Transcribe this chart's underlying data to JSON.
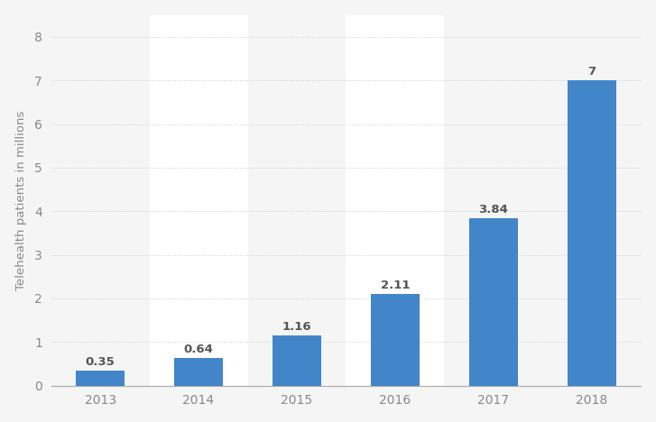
{
  "categories": [
    "2013",
    "2014",
    "2015",
    "2016",
    "2017",
    "2018"
  ],
  "values": [
    0.35,
    0.64,
    1.16,
    2.11,
    3.84,
    7
  ],
  "labels": [
    "0.35",
    "0.64",
    "1.16",
    "2.11",
    "3.84",
    "7"
  ],
  "bar_color": "#4285c8",
  "background_color": "#f5f5f5",
  "col_highlight_color": "#ffffff",
  "col_highlight_indices": [
    1,
    3
  ],
  "ylabel": "Telehealth patients in millions",
  "ylim": [
    0,
    8.5
  ],
  "yticks": [
    0,
    1,
    2,
    3,
    4,
    5,
    6,
    7,
    8
  ],
  "grid_color": "#cccccc",
  "grid_linestyle": "dotted",
  "label_fontsize": 9.5,
  "tick_fontsize": 10,
  "ylabel_fontsize": 9.5,
  "bar_width": 0.5,
  "label_color": "#555555",
  "tick_color": "#888888"
}
